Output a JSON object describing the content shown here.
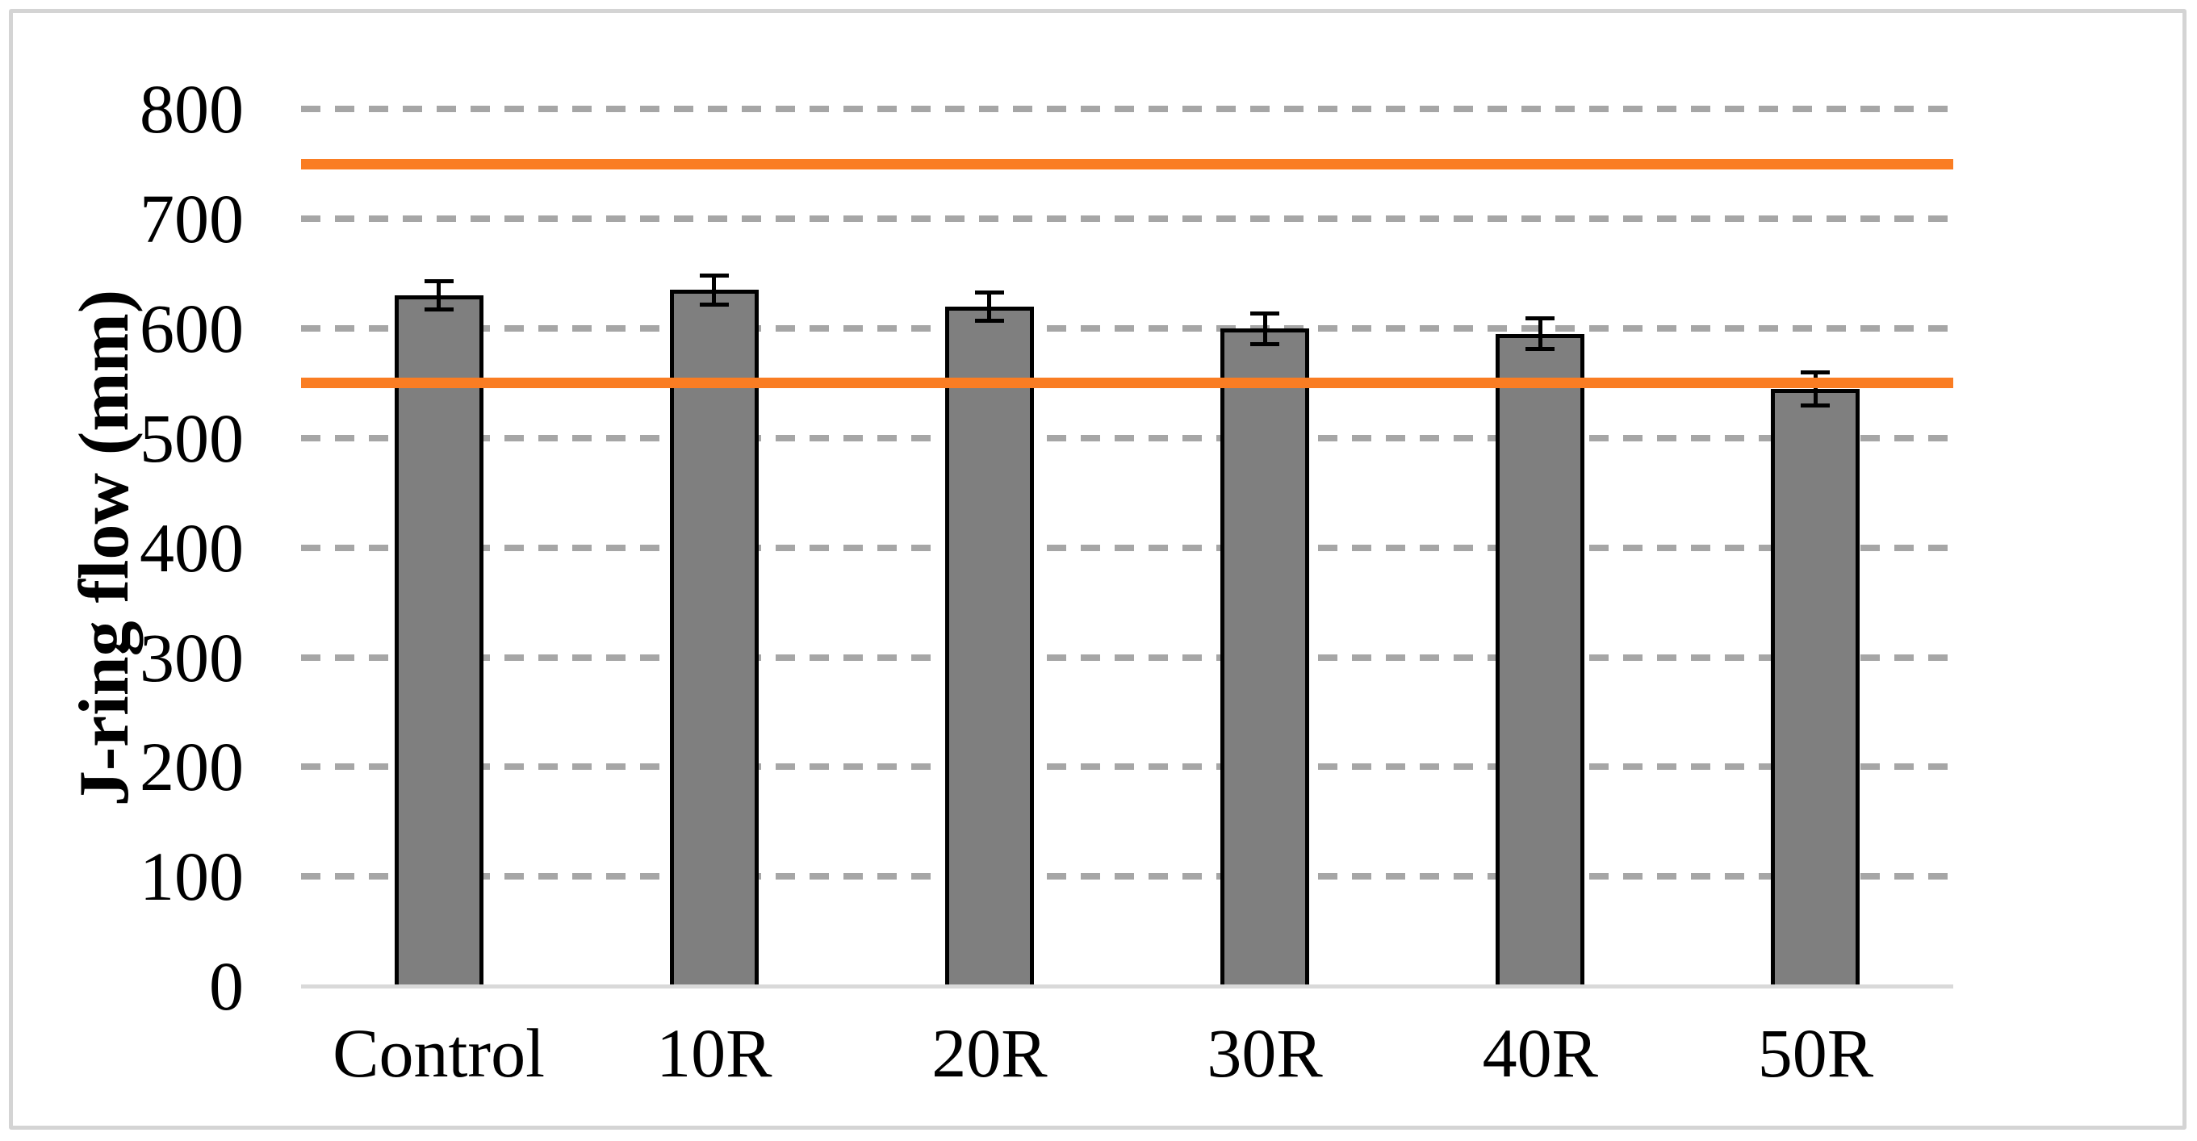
{
  "page": {
    "background_color": "#FFFFFF",
    "frame_border_color": "#D4D4D4"
  },
  "chart_data": {
    "type": "bar",
    "title": "",
    "xlabel": "",
    "ylabel": "J-ring flow (mm)",
    "categories": [
      "Control",
      "10R",
      "20R",
      "30R",
      "40R",
      "50R"
    ],
    "series": [
      {
        "name": "J-ring flow",
        "values": [
          630,
          635,
          620,
          600,
          595,
          545
        ],
        "error_bars": [
          13,
          13,
          13,
          14,
          14,
          15
        ]
      }
    ],
    "yticks": [
      0,
      100,
      200,
      300,
      400,
      500,
      600,
      700,
      800
    ],
    "ylim": [
      0,
      800
    ],
    "reference_lines": [
      {
        "name": "upper-limit-line",
        "value": 750,
        "color": "#FA7D23"
      },
      {
        "name": "lower-limit-line",
        "value": 550,
        "color": "#FA7D23"
      }
    ],
    "legend": "none",
    "grid": {
      "style": "dashed-horizontal",
      "color": "#A6A6A6",
      "axis_line_color": "#D9D9D9"
    },
    "bar_style": {
      "fill": "#7F7F7F",
      "border": "#000000"
    }
  }
}
